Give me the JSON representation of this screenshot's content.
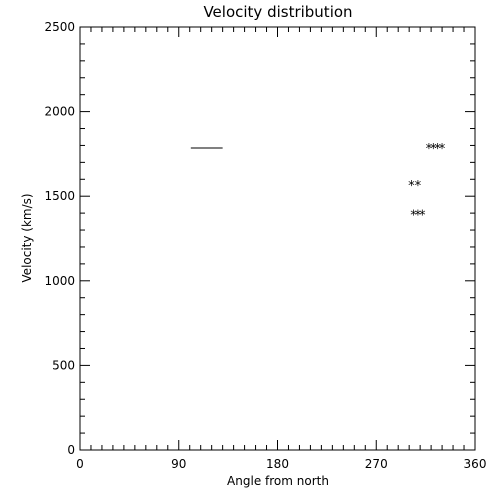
{
  "chart_data": {
    "type": "scatter",
    "title": "Velocity distribution",
    "xlabel": "Angle from north",
    "ylabel": "Velocity (km/s)",
    "xlim": [
      0,
      360
    ],
    "ylim": [
      0,
      2500
    ],
    "x_ticks": [
      0,
      90,
      180,
      270,
      360
    ],
    "y_ticks": [
      0,
      500,
      1000,
      1500,
      2000,
      2500
    ],
    "x_minor_step": 10,
    "y_minor_step": 100,
    "grid": false,
    "marker_symbol": "*",
    "points": [
      {
        "x": 302,
        "y": 1565
      },
      {
        "x": 308,
        "y": 1565
      },
      {
        "x": 304,
        "y": 1392
      },
      {
        "x": 308,
        "y": 1392
      },
      {
        "x": 312,
        "y": 1392
      },
      {
        "x": 318,
        "y": 1785
      },
      {
        "x": 322,
        "y": 1785
      },
      {
        "x": 326,
        "y": 1785
      },
      {
        "x": 330,
        "y": 1785
      }
    ],
    "line_segment": {
      "x": [
        101,
        130
      ],
      "y": [
        1785,
        1785
      ]
    }
  }
}
